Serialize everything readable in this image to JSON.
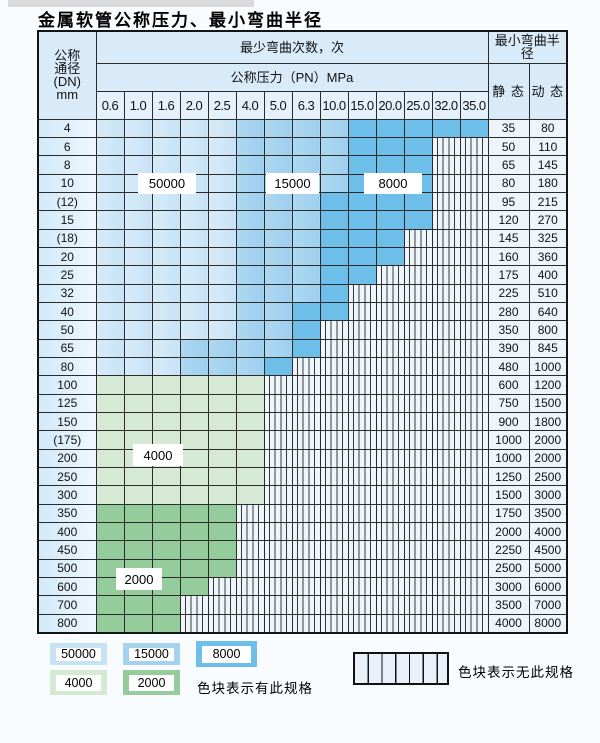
{
  "title": "金属软管公称压力、最小弯曲半径",
  "header": {
    "dn_lines": [
      "公称",
      "通径",
      "(DN)",
      "mm"
    ],
    "cycles_header": "最少弯曲次数，次",
    "pressure_header": "公称压力（PN）MPa",
    "radius_header": "最小弯曲半径",
    "static_label": "静 态",
    "dynamic_label": "动 态",
    "pressures": [
      "0.6",
      "1.0",
      "1.6",
      "2.0",
      "2.5",
      "4.0",
      "5.0",
      "6.3",
      "10.0",
      "15.0",
      "20.0",
      "25.0",
      "32.0",
      "35.0"
    ]
  },
  "band_labels": {
    "b50000": "50000",
    "b15000": "15000",
    "b8000": "8000",
    "b4000": "4000",
    "b2000": "2000"
  },
  "colors": {
    "cycles_50000": "#c6e2f5",
    "cycles_15000": "#a5d3ef",
    "cycles_8000": "#6dbfe9",
    "cycles_4000": "#d5e9d5",
    "cycles_2000": "#94cc9b",
    "unavailable_bg": "#eef5fb",
    "grid_line": "#2b2b2b"
  },
  "rows": [
    {
      "dn": "4",
      "cells": [
        "50000",
        "50000",
        "50000",
        "50000",
        "50000",
        "15000",
        "15000",
        "15000",
        "15000",
        "8000",
        "8000",
        "8000",
        "8000",
        "8000"
      ],
      "static_radius": "35",
      "dynamic_radius": "80"
    },
    {
      "dn": "6",
      "cells": [
        "50000",
        "50000",
        "50000",
        "50000",
        "50000",
        "15000",
        "15000",
        "15000",
        "15000",
        "8000",
        "8000",
        "8000",
        "none",
        "none"
      ],
      "static_radius": "50",
      "dynamic_radius": "110"
    },
    {
      "dn": "8",
      "cells": [
        "50000",
        "50000",
        "50000",
        "50000",
        "50000",
        "15000",
        "15000",
        "15000",
        "15000",
        "8000",
        "8000",
        "8000",
        "none",
        "none"
      ],
      "static_radius": "65",
      "dynamic_radius": "145"
    },
    {
      "dn": "10",
      "cells": [
        "50000",
        "50000",
        "50000",
        "50000",
        "50000",
        "15000",
        "15000",
        "15000",
        "15000",
        "8000",
        "8000",
        "8000",
        "none",
        "none"
      ],
      "static_radius": "80",
      "dynamic_radius": "180"
    },
    {
      "dn": "(12)",
      "cells": [
        "50000",
        "50000",
        "50000",
        "50000",
        "50000",
        "15000",
        "15000",
        "15000",
        "8000",
        "8000",
        "8000",
        "8000",
        "none",
        "none"
      ],
      "static_radius": "95",
      "dynamic_radius": "215"
    },
    {
      "dn": "15",
      "cells": [
        "50000",
        "50000",
        "50000",
        "50000",
        "50000",
        "15000",
        "15000",
        "15000",
        "8000",
        "8000",
        "8000",
        "8000",
        "none",
        "none"
      ],
      "static_radius": "120",
      "dynamic_radius": "270"
    },
    {
      "dn": "(18)",
      "cells": [
        "50000",
        "50000",
        "50000",
        "50000",
        "50000",
        "15000",
        "15000",
        "15000",
        "8000",
        "8000",
        "8000",
        "none",
        "none",
        "none"
      ],
      "static_radius": "145",
      "dynamic_radius": "325"
    },
    {
      "dn": "20",
      "cells": [
        "50000",
        "50000",
        "50000",
        "50000",
        "50000",
        "15000",
        "15000",
        "15000",
        "8000",
        "8000",
        "8000",
        "none",
        "none",
        "none"
      ],
      "static_radius": "160",
      "dynamic_radius": "360"
    },
    {
      "dn": "25",
      "cells": [
        "50000",
        "50000",
        "50000",
        "50000",
        "50000",
        "15000",
        "15000",
        "15000",
        "8000",
        "8000",
        "none",
        "none",
        "none",
        "none"
      ],
      "static_radius": "175",
      "dynamic_radius": "400"
    },
    {
      "dn": "32",
      "cells": [
        "50000",
        "50000",
        "50000",
        "50000",
        "50000",
        "15000",
        "15000",
        "15000",
        "8000",
        "none",
        "none",
        "none",
        "none",
        "none"
      ],
      "static_radius": "225",
      "dynamic_radius": "510"
    },
    {
      "dn": "40",
      "cells": [
        "50000",
        "50000",
        "50000",
        "50000",
        "50000",
        "15000",
        "15000",
        "8000",
        "8000",
        "none",
        "none",
        "none",
        "none",
        "none"
      ],
      "static_radius": "280",
      "dynamic_radius": "640"
    },
    {
      "dn": "50",
      "cells": [
        "50000",
        "50000",
        "50000",
        "50000",
        "50000",
        "15000",
        "15000",
        "8000",
        "none",
        "none",
        "none",
        "none",
        "none",
        "none"
      ],
      "static_radius": "350",
      "dynamic_radius": "800"
    },
    {
      "dn": "65",
      "cells": [
        "50000",
        "50000",
        "50000",
        "15000",
        "15000",
        "15000",
        "15000",
        "8000",
        "none",
        "none",
        "none",
        "none",
        "none",
        "none"
      ],
      "static_radius": "390",
      "dynamic_radius": "845"
    },
    {
      "dn": "80",
      "cells": [
        "50000",
        "50000",
        "50000",
        "15000",
        "15000",
        "15000",
        "8000",
        "none",
        "none",
        "none",
        "none",
        "none",
        "none",
        "none"
      ],
      "static_radius": "480",
      "dynamic_radius": "1000"
    },
    {
      "dn": "100",
      "cells": [
        "4000",
        "4000",
        "4000",
        "4000",
        "4000",
        "4000",
        "none",
        "none",
        "none",
        "none",
        "none",
        "none",
        "none",
        "none"
      ],
      "static_radius": "600",
      "dynamic_radius": "1200"
    },
    {
      "dn": "125",
      "cells": [
        "4000",
        "4000",
        "4000",
        "4000",
        "4000",
        "4000",
        "none",
        "none",
        "none",
        "none",
        "none",
        "none",
        "none",
        "none"
      ],
      "static_radius": "750",
      "dynamic_radius": "1500"
    },
    {
      "dn": "150",
      "cells": [
        "4000",
        "4000",
        "4000",
        "4000",
        "4000",
        "4000",
        "none",
        "none",
        "none",
        "none",
        "none",
        "none",
        "none",
        "none"
      ],
      "static_radius": "900",
      "dynamic_radius": "1800"
    },
    {
      "dn": "(175)",
      "cells": [
        "4000",
        "4000",
        "4000",
        "4000",
        "4000",
        "4000",
        "none",
        "none",
        "none",
        "none",
        "none",
        "none",
        "none",
        "none"
      ],
      "static_radius": "1000",
      "dynamic_radius": "2000"
    },
    {
      "dn": "200",
      "cells": [
        "4000",
        "4000",
        "4000",
        "4000",
        "4000",
        "4000",
        "none",
        "none",
        "none",
        "none",
        "none",
        "none",
        "none",
        "none"
      ],
      "static_radius": "1000",
      "dynamic_radius": "2000"
    },
    {
      "dn": "250",
      "cells": [
        "4000",
        "4000",
        "4000",
        "4000",
        "4000",
        "4000",
        "none",
        "none",
        "none",
        "none",
        "none",
        "none",
        "none",
        "none"
      ],
      "static_radius": "1250",
      "dynamic_radius": "2500"
    },
    {
      "dn": "300",
      "cells": [
        "4000",
        "4000",
        "4000",
        "4000",
        "4000",
        "4000",
        "none",
        "none",
        "none",
        "none",
        "none",
        "none",
        "none",
        "none"
      ],
      "static_radius": "1500",
      "dynamic_radius": "3000"
    },
    {
      "dn": "350",
      "cells": [
        "2000",
        "2000",
        "2000",
        "2000",
        "2000",
        "none",
        "none",
        "none",
        "none",
        "none",
        "none",
        "none",
        "none",
        "none"
      ],
      "static_radius": "1750",
      "dynamic_radius": "3500"
    },
    {
      "dn": "400",
      "cells": [
        "2000",
        "2000",
        "2000",
        "2000",
        "2000",
        "none",
        "none",
        "none",
        "none",
        "none",
        "none",
        "none",
        "none",
        "none"
      ],
      "static_radius": "2000",
      "dynamic_radius": "4000"
    },
    {
      "dn": "450",
      "cells": [
        "2000",
        "2000",
        "2000",
        "2000",
        "2000",
        "none",
        "none",
        "none",
        "none",
        "none",
        "none",
        "none",
        "none",
        "none"
      ],
      "static_radius": "2250",
      "dynamic_radius": "4500"
    },
    {
      "dn": "500",
      "cells": [
        "2000",
        "2000",
        "2000",
        "2000",
        "2000",
        "none",
        "none",
        "none",
        "none",
        "none",
        "none",
        "none",
        "none",
        "none"
      ],
      "static_radius": "2500",
      "dynamic_radius": "5000"
    },
    {
      "dn": "600",
      "cells": [
        "2000",
        "2000",
        "2000",
        "2000",
        "none",
        "none",
        "none",
        "none",
        "none",
        "none",
        "none",
        "none",
        "none",
        "none"
      ],
      "static_radius": "3000",
      "dynamic_radius": "6000"
    },
    {
      "dn": "700",
      "cells": [
        "2000",
        "2000",
        "2000",
        "none",
        "none",
        "none",
        "none",
        "none",
        "none",
        "none",
        "none",
        "none",
        "none",
        "none"
      ],
      "static_radius": "3500",
      "dynamic_radius": "7000"
    },
    {
      "dn": "800",
      "cells": [
        "2000",
        "2000",
        "2000",
        "none",
        "none",
        "none",
        "none",
        "none",
        "none",
        "none",
        "none",
        "none",
        "none",
        "none"
      ],
      "static_radius": "4000",
      "dynamic_radius": "8000"
    }
  ],
  "legend": {
    "items": [
      {
        "label": "50000",
        "state": "50000"
      },
      {
        "label": "15000",
        "state": "15000"
      },
      {
        "label": "8000",
        "state": "8000"
      },
      {
        "label": "4000",
        "state": "4000"
      },
      {
        "label": "2000",
        "state": "2000"
      }
    ],
    "available_note": "色块表示有此规格",
    "unavailable_note": "色块表示无此规格"
  }
}
